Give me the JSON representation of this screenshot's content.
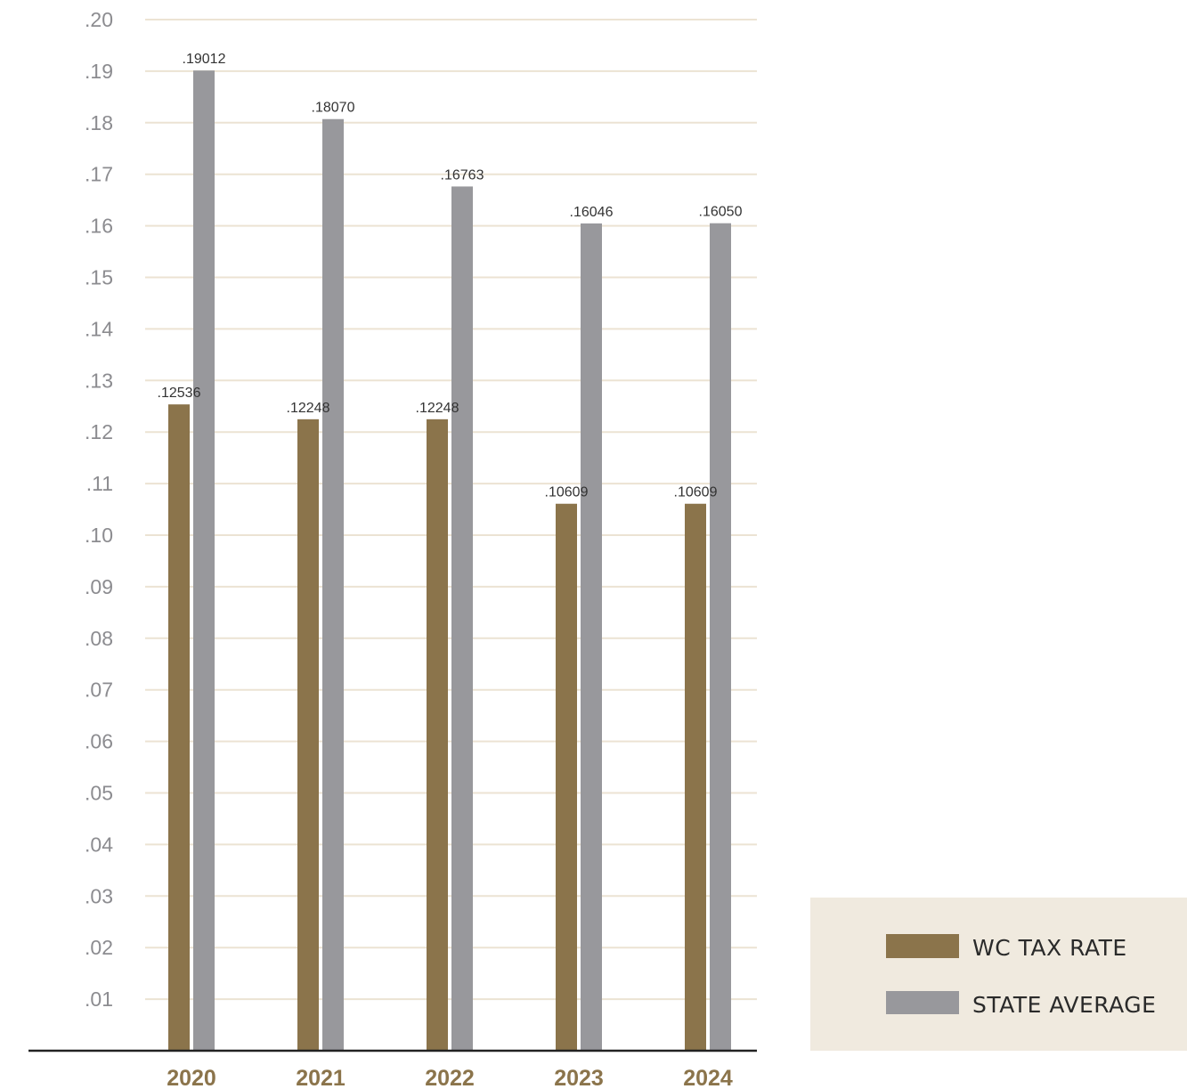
{
  "colors": {
    "wc": "#8b744b",
    "state": "#98989c",
    "grid": "#ece3d3",
    "axis": "#222222",
    "legend_bg": "#f0eadf",
    "ytick": "#8c8c90",
    "xtick": "#8b744b"
  },
  "chart_data": {
    "type": "bar",
    "title": "",
    "xlabel": "",
    "ylabel": "",
    "categories": [
      "2020",
      "2021",
      "2022",
      "2023",
      "2024"
    ],
    "series": [
      {
        "name": "WC TAX RATE",
        "values": [
          0.12536,
          0.12248,
          0.12248,
          0.10609,
          0.10609
        ],
        "labels": [
          ".12536",
          ".12248",
          ".12248",
          ".10609",
          ".10609"
        ]
      },
      {
        "name": "STATE AVERAGE",
        "values": [
          0.19012,
          0.1807,
          0.16763,
          0.16046,
          0.1605
        ],
        "labels": [
          ".19012",
          ".18070",
          ".16763",
          ".16046",
          ".16050"
        ]
      }
    ],
    "ylim": [
      0,
      0.2
    ],
    "yticks": [
      0.01,
      0.02,
      0.03,
      0.04,
      0.05,
      0.06,
      0.07,
      0.08,
      0.09,
      0.1,
      0.11,
      0.12,
      0.13,
      0.14,
      0.15,
      0.16,
      0.17,
      0.18,
      0.19,
      0.2
    ],
    "ytick_labels": [
      ".01",
      ".02",
      ".03",
      ".04",
      ".05",
      ".06",
      ".07",
      ".08",
      ".09",
      ".10",
      ".11",
      ".12",
      ".13",
      ".14",
      ".15",
      ".16",
      ".17",
      ".18",
      ".19",
      ".20"
    ],
    "grid": true,
    "legend_position": "bottom-right"
  },
  "legend": {
    "items": [
      {
        "label": "WC TAX RATE"
      },
      {
        "label": "STATE AVERAGE"
      }
    ]
  }
}
